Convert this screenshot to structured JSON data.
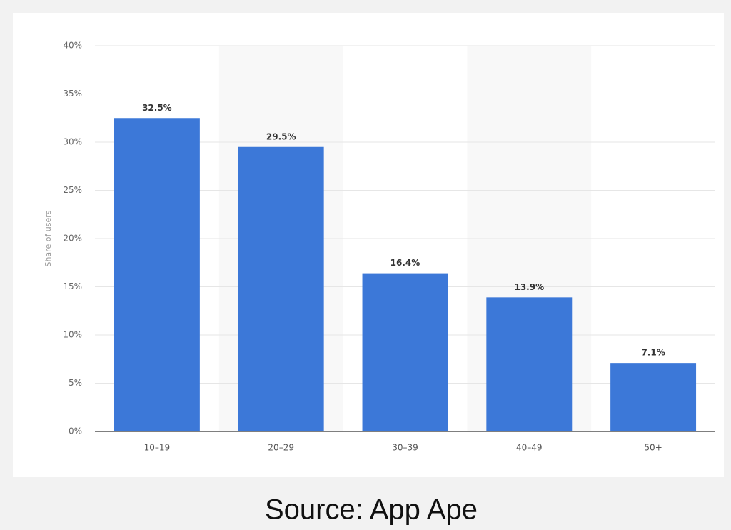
{
  "chart_data": {
    "type": "bar",
    "y_label": "Share of users",
    "categories": [
      "10–19",
      "20–29",
      "30–39",
      "40–49",
      "50+"
    ],
    "values": [
      32.5,
      29.5,
      16.4,
      13.9,
      7.1
    ],
    "value_labels": [
      "32.5%",
      "29.5%",
      "16.4%",
      "13.9%",
      "7.1%"
    ],
    "color": "#3c78d8",
    "ylim": [
      0,
      40
    ],
    "yticks": [
      {
        "value": 0,
        "label": "0%"
      },
      {
        "value": 5,
        "label": "5%"
      },
      {
        "value": 10,
        "label": "10%"
      },
      {
        "value": 15,
        "label": "15%"
      },
      {
        "value": 20,
        "label": "20%"
      },
      {
        "value": 25,
        "label": "25%"
      },
      {
        "value": 30,
        "label": "30%"
      },
      {
        "value": 35,
        "label": "35%"
      },
      {
        "value": 40,
        "label": "40%"
      }
    ],
    "grid": true,
    "source": "Source: App Ape"
  }
}
